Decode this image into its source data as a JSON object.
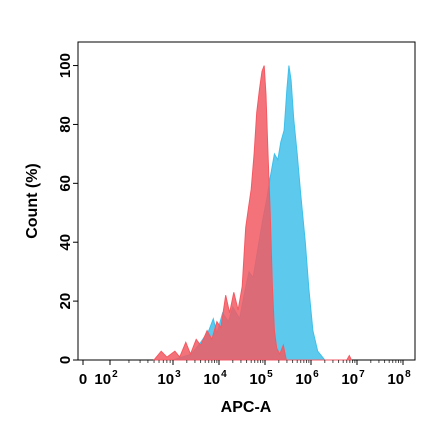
{
  "chart_data": {
    "type": "area",
    "title": "",
    "xlabel": "APC-A",
    "ylabel": "Count  (%)",
    "x_scale": "biexponential-log",
    "xlim": [
      0,
      100000000
    ],
    "ylim": [
      0,
      108
    ],
    "grid": false,
    "legend": "none",
    "x_ticks": [
      {
        "base": "0",
        "exp": ""
      },
      {
        "base": "10",
        "exp": "2"
      },
      {
        "base": "10",
        "exp": "3"
      },
      {
        "base": "10",
        "exp": "4"
      },
      {
        "base": "10",
        "exp": "5"
      },
      {
        "base": "10",
        "exp": "6"
      },
      {
        "base": "10",
        "exp": "7"
      },
      {
        "base": "10",
        "exp": "8"
      }
    ],
    "y_ticks": [
      "0",
      "20",
      "40",
      "60",
      "80",
      "100"
    ],
    "series": [
      {
        "color": "#3fbfea",
        "opacity": 0.85,
        "points": [
          [
            1000.0,
            0
          ],
          [
            2500.0,
            2
          ],
          [
            4000.0,
            6
          ],
          [
            6000.0,
            10
          ],
          [
            7500.0,
            14
          ],
          [
            9000.0,
            9
          ],
          [
            12000.0,
            16
          ],
          [
            16000.0,
            13
          ],
          [
            20000.0,
            18
          ],
          [
            28000.0,
            14
          ],
          [
            35000.0,
            22
          ],
          [
            45000.0,
            30
          ],
          [
            55000.0,
            28
          ],
          [
            70000.0,
            38
          ],
          [
            90000.0,
            48
          ],
          [
            110000.0,
            55
          ],
          [
            130000.0,
            62
          ],
          [
            160000.0,
            70
          ],
          [
            190000.0,
            68
          ],
          [
            220000.0,
            74
          ],
          [
            260000.0,
            78
          ],
          [
            300000.0,
            92
          ],
          [
            330000.0,
            100
          ],
          [
            370000.0,
            95
          ],
          [
            420000.0,
            82
          ],
          [
            500000.0,
            70
          ],
          [
            600000.0,
            56
          ],
          [
            750000.0,
            40
          ],
          [
            900000.0,
            24
          ],
          [
            1100000.0,
            10
          ],
          [
            1400000.0,
            3
          ],
          [
            2000000.0,
            0
          ]
        ]
      },
      {
        "color": "#f25a63",
        "opacity": 0.85,
        "points": [
          [
            500.0,
            0
          ],
          [
            650.0,
            3
          ],
          [
            800.0,
            1
          ],
          [
            1100.0,
            3
          ],
          [
            1400.0,
            1
          ],
          [
            1900.0,
            6
          ],
          [
            2400.0,
            2
          ],
          [
            3200.0,
            7
          ],
          [
            4000.0,
            5
          ],
          [
            5500.0,
            10
          ],
          [
            7000.0,
            7
          ],
          [
            9000.0,
            13
          ],
          [
            11000.0,
            11
          ],
          [
            14000.0,
            22
          ],
          [
            17000.0,
            16
          ],
          [
            21000.0,
            23
          ],
          [
            26000.0,
            17
          ],
          [
            32000.0,
            25
          ],
          [
            38000.0,
            45
          ],
          [
            44000.0,
            52
          ],
          [
            50000.0,
            58
          ],
          [
            58000.0,
            70
          ],
          [
            66000.0,
            84
          ],
          [
            76000.0,
            92
          ],
          [
            86000.0,
            98
          ],
          [
            96000.0,
            100
          ],
          [
            105000.0,
            90
          ],
          [
            115000.0,
            72
          ],
          [
            130000.0,
            50
          ],
          [
            145000.0,
            25
          ],
          [
            160000.0,
            10
          ],
          [
            180000.0,
            4
          ],
          [
            210000.0,
            2
          ],
          [
            250000.0,
            5
          ],
          [
            290000.0,
            0
          ],
          [
            6000000.0,
            0
          ],
          [
            6800000.0,
            1.5
          ],
          [
            7600000.0,
            0
          ]
        ]
      }
    ]
  }
}
